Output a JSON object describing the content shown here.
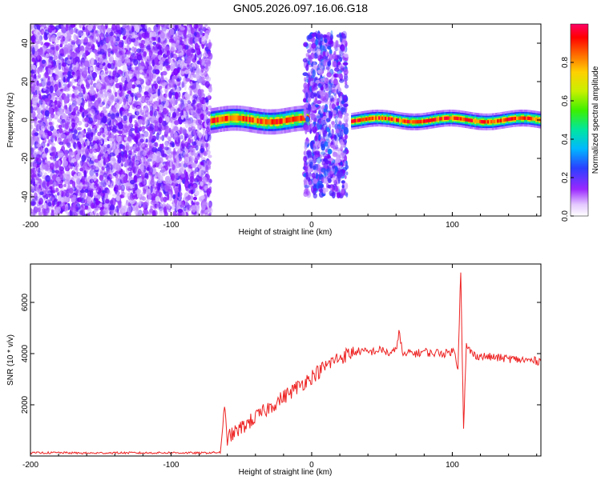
{
  "figure": {
    "title": "GN05.2026.097.16.06.G18"
  },
  "chart_data": [
    {
      "type": "heatmap",
      "xlabel": "Height of straight line (km)",
      "ylabel": "Frequency (Hz)",
      "xlim": [
        -200,
        163
      ],
      "ylim": [
        -50,
        50
      ],
      "xticks": [
        -200,
        -100,
        0,
        100
      ],
      "yticks": [
        -40,
        -20,
        0,
        20,
        40
      ],
      "colorbar": {
        "label": "Normalized spectral amplitude",
        "range": [
          0,
          1
        ],
        "ticks": [
          "0.0",
          "0.2",
          "0.4",
          "0.6",
          "0.8"
        ],
        "tick_values": [
          0,
          0.2,
          0.4,
          0.6,
          0.8
        ],
        "colormap": [
          "#ffffff",
          "#c8a0ff",
          "#7d00ff",
          "#1f3cff",
          "#00c8ff",
          "#00e676",
          "#b0f000",
          "#ffd400",
          "#ff6a00",
          "#ff0000",
          "#ff0060"
        ]
      },
      "regions": [
        {
          "name": "noise",
          "x_range": [
            -200,
            -72
          ],
          "freq_range": [
            -50,
            50
          ],
          "amplitude": 0.15
        },
        {
          "name": "signal-band-1",
          "x_range": [
            -72,
            -2
          ],
          "freq_center": 0,
          "freq_halfwidth": 3,
          "amplitude": 0.9
        },
        {
          "name": "noise-burst",
          "x_range": [
            -5,
            25
          ],
          "freq_range": [
            -40,
            45
          ],
          "amplitude": 0.2
        },
        {
          "name": "signal-band-2",
          "x_range": [
            28,
            163
          ],
          "freq_center": 0,
          "freq_halfwidth": 2,
          "amplitude": 0.9
        }
      ],
      "grid": false
    },
    {
      "type": "line",
      "xlabel": "Height of straight line (km)",
      "ylabel": "SNR (10 * v/v)",
      "xlim": [
        -200,
        163
      ],
      "ylim": [
        0,
        7500
      ],
      "xticks": [
        -200,
        -100,
        0,
        100
      ],
      "yticks": [
        2000,
        4000,
        6000
      ],
      "series": [
        {
          "color": "#ee2222",
          "x": [
            -200,
            -180,
            -160,
            -140,
            -120,
            -100,
            -80,
            -65,
            -62,
            -60,
            -55,
            -50,
            -45,
            -40,
            -35,
            -30,
            -25,
            -20,
            -15,
            -10,
            -5,
            0,
            5,
            10,
            15,
            20,
            25,
            30,
            35,
            40,
            45,
            50,
            55,
            60,
            62,
            65,
            70,
            75,
            80,
            85,
            90,
            95,
            100,
            102,
            104,
            106,
            108,
            110,
            115,
            120,
            130,
            140,
            150,
            163
          ],
          "y": [
            120,
            130,
            110,
            125,
            120,
            130,
            115,
            140,
            1800,
            700,
            900,
            1100,
            1300,
            1500,
            1700,
            1900,
            2100,
            2300,
            2500,
            2700,
            2900,
            3100,
            3300,
            3500,
            3700,
            3850,
            3950,
            4050,
            4100,
            4050,
            4100,
            4150,
            4000,
            4100,
            4900,
            3900,
            4050,
            4000,
            4100,
            4000,
            4050,
            4000,
            4100,
            4050,
            3400,
            7300,
            1000,
            4300,
            3950,
            3900,
            3850,
            3800,
            3750,
            3700
          ]
        }
      ],
      "grid": false
    }
  ]
}
